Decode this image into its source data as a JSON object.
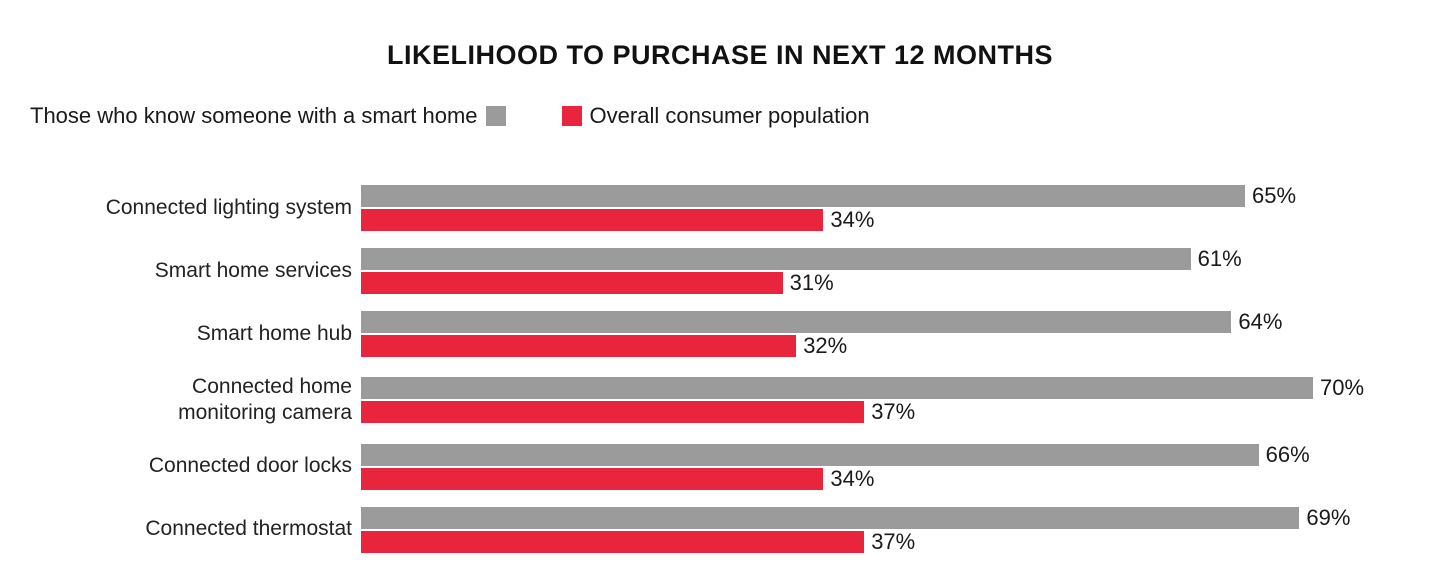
{
  "title": "LIKELIHOOD TO PURCHASE IN NEXT 12 MONTHS",
  "legend": [
    {
      "label": "Those who know someone with a smart home",
      "color": "#9b9b9b"
    },
    {
      "label": "Overall consumer population",
      "color": "#e8253c"
    }
  ],
  "chart_data": {
    "type": "bar",
    "orientation": "horizontal",
    "title": "LIKELIHOOD TO PURCHASE IN NEXT 12 MONTHS",
    "categories": [
      "Connected lighting system",
      "Smart home services",
      "Smart home hub",
      "Connected home\nmonitoring camera",
      "Connected door locks",
      "Connected thermostat"
    ],
    "series": [
      {
        "name": "Those who know someone with a smart home",
        "color": "#9b9b9b",
        "values": [
          65,
          61,
          64,
          70,
          66,
          69
        ],
        "labels": [
          "65%",
          "61%",
          "64%",
          "70%",
          "66%",
          "69%"
        ]
      },
      {
        "name": "Overall consumer population",
        "color": "#e8253c",
        "values": [
          34,
          31,
          32,
          37,
          34,
          37
        ],
        "labels": [
          "34%",
          "31%",
          "32%",
          "37%",
          "34%",
          "37%"
        ]
      }
    ],
    "value_suffix": "%",
    "xlim": [
      0,
      70
    ],
    "grid": false,
    "axes_shown": false,
    "legend_position": "top",
    "bar_value_labels": "end-of-bar"
  }
}
